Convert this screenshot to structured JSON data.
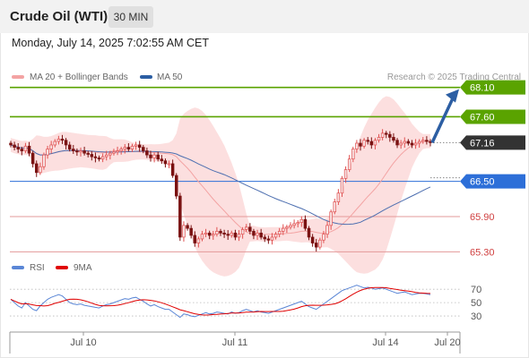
{
  "header": {
    "title": "Crude Oil (WTI)",
    "interval": "30 MIN",
    "datetime": "Monday, July 14, 2025 7:02:55 AM CET"
  },
  "legend": {
    "ma_bb_label": "MA 20 + Bollinger Bands",
    "ma50_label": "MA 50",
    "rsi_label": "RSI",
    "rsi_ma_label": "9MA",
    "copyright": "Research © 2025 Trading Central"
  },
  "colors": {
    "green": "#5aa300",
    "blue": "#2d6fd8",
    "red_level": "#d04040",
    "band_fill": "#fbd9d9",
    "ma20": "#f3a3a3",
    "ma50": "#4d6fb0",
    "candle_up": "#e05050",
    "candle_down": "#7a1212",
    "current": "#333333",
    "arrow": "#2c5ea3",
    "rsi": "#5a86d6",
    "rsi_ma": "#e00000"
  },
  "chart_data": [
    {
      "type": "candlestick",
      "price_range": [
        65.0,
        68.4
      ],
      "levels": [
        {
          "value": 68.1,
          "label": "68.10",
          "kind": "resistance"
        },
        {
          "value": 67.6,
          "label": "67.60",
          "kind": "resistance"
        },
        {
          "value": 67.16,
          "label": "67.16",
          "kind": "current"
        },
        {
          "value": 66.5,
          "label": "66.50",
          "kind": "pivot"
        },
        {
          "value": 65.9,
          "label": "65.90",
          "kind": "support"
        },
        {
          "value": 65.3,
          "label": "65.30",
          "kind": "support"
        }
      ],
      "x_ticks": [
        "Jul 10",
        "Jul 11",
        "Jul 14",
        "Jul 20"
      ],
      "close": [
        67.12,
        67.08,
        67.05,
        67.02,
        67.1,
        66.98,
        66.8,
        66.65,
        66.75,
        66.95,
        67.05,
        67.12,
        67.18,
        67.22,
        67.2,
        67.12,
        67.05,
        67.02,
        67.0,
        67.02,
        66.98,
        66.96,
        66.92,
        66.9,
        66.88,
        66.92,
        66.95,
        66.98,
        67.0,
        67.02,
        67.05,
        67.08,
        67.05,
        67.1,
        67.12,
        67.08,
        67.02,
        66.95,
        66.9,
        66.95,
        66.88,
        66.85,
        66.8,
        66.8,
        66.6,
        66.25,
        65.55,
        65.75,
        65.7,
        65.58,
        65.45,
        65.52,
        65.6,
        65.62,
        65.58,
        65.6,
        65.65,
        65.62,
        65.6,
        65.58,
        65.62,
        65.55,
        65.6,
        65.68,
        65.72,
        65.65,
        65.58,
        65.62,
        65.55,
        65.52,
        65.5,
        65.55,
        65.6,
        65.65,
        65.7,
        65.72,
        65.75,
        65.78,
        65.8,
        65.85,
        65.7,
        65.55,
        65.45,
        65.38,
        65.5,
        65.6,
        65.75,
        65.98,
        66.15,
        66.3,
        66.55,
        66.7,
        66.88,
        67.05,
        67.15,
        67.1,
        67.2,
        67.18,
        67.12,
        67.2,
        67.25,
        67.32,
        67.3,
        67.25,
        67.2,
        67.12,
        67.15,
        67.18,
        67.15,
        67.12,
        67.15,
        67.18,
        67.2,
        67.18,
        67.16
      ],
      "rsi": [
        55,
        50,
        45,
        42,
        50,
        45,
        40,
        38,
        45,
        50,
        55,
        58,
        60,
        62,
        60,
        55,
        50,
        48,
        47,
        48,
        46,
        45,
        44,
        43,
        42,
        45,
        47,
        48,
        50,
        52,
        54,
        56,
        55,
        57,
        58,
        55,
        52,
        48,
        45,
        47,
        44,
        42,
        40,
        40,
        36,
        32,
        28,
        33,
        32,
        30,
        29,
        31,
        33,
        35,
        33,
        34,
        36,
        35,
        34,
        33,
        36,
        34,
        35,
        38,
        40,
        38,
        36,
        38,
        36,
        35,
        34,
        36,
        38,
        40,
        42,
        44,
        46,
        48,
        50,
        52,
        48,
        44,
        42,
        40,
        44,
        48,
        52,
        56,
        60,
        64,
        68,
        70,
        72,
        74,
        76,
        74,
        72,
        73,
        72,
        70,
        71,
        72,
        70,
        68,
        66,
        64,
        65,
        66,
        64,
        62,
        63,
        64,
        64,
        63,
        62
      ],
      "rsi_ticks": [
        70,
        50,
        30
      ],
      "rsi_range": [
        10,
        85
      ]
    }
  ]
}
